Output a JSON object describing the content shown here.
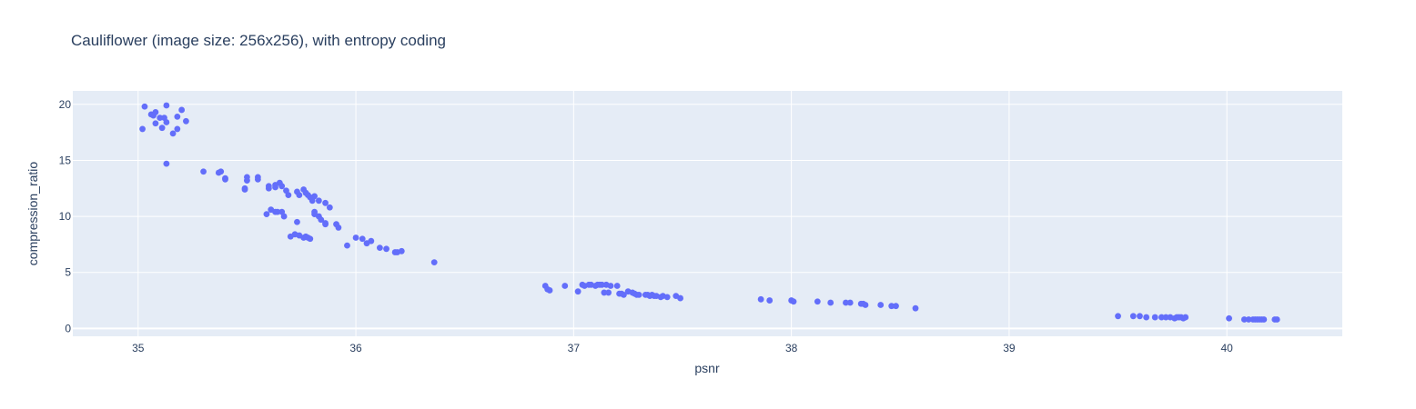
{
  "chart_data": {
    "type": "scatter",
    "title": "Cauliflower (image size: 256x256), with entropy coding",
    "xlabel": "psnr",
    "ylabel": "compression_ratio",
    "xlim": [
      34.7,
      40.53
    ],
    "ylim": [
      -0.7,
      21.2
    ],
    "xticks": [
      "35",
      "36",
      "37",
      "38",
      "39",
      "40"
    ],
    "yticks": [
      "0",
      "5",
      "10",
      "15",
      "20"
    ],
    "grid": true,
    "legend": "none",
    "colors": {
      "marker": "#636efa",
      "plot_bg": "#e5ecf6",
      "text": "#2a3f5f",
      "grid": "#ffffff"
    },
    "series": [
      {
        "points": [
          [
            35.02,
            17.8
          ],
          [
            35.03,
            19.8
          ],
          [
            35.06,
            19.1
          ],
          [
            35.07,
            19.0
          ],
          [
            35.08,
            19.3
          ],
          [
            35.08,
            18.3
          ],
          [
            35.1,
            18.8
          ],
          [
            35.11,
            17.9
          ],
          [
            35.12,
            18.8
          ],
          [
            35.13,
            19.9
          ],
          [
            35.13,
            18.4
          ],
          [
            35.13,
            14.7
          ],
          [
            35.16,
            17.4
          ],
          [
            35.18,
            18.9
          ],
          [
            35.18,
            17.8
          ],
          [
            35.2,
            19.5
          ],
          [
            35.22,
            18.5
          ],
          [
            35.3,
            14.0
          ],
          [
            35.37,
            13.9
          ],
          [
            35.38,
            14.0
          ],
          [
            35.4,
            13.3
          ],
          [
            35.4,
            13.4
          ],
          [
            35.49,
            12.5
          ],
          [
            35.49,
            12.4
          ],
          [
            35.5,
            13.2
          ],
          [
            35.5,
            13.5
          ],
          [
            35.55,
            13.3
          ],
          [
            35.55,
            13.5
          ],
          [
            35.6,
            12.5
          ],
          [
            35.6,
            12.7
          ],
          [
            35.63,
            12.8
          ],
          [
            35.63,
            12.6
          ],
          [
            35.65,
            13.0
          ],
          [
            35.66,
            12.7
          ],
          [
            35.68,
            12.3
          ],
          [
            35.69,
            11.9
          ],
          [
            35.59,
            10.2
          ],
          [
            35.61,
            10.6
          ],
          [
            35.63,
            10.4
          ],
          [
            35.64,
            10.4
          ],
          [
            35.66,
            10.4
          ],
          [
            35.67,
            10.0
          ],
          [
            35.7,
            8.2
          ],
          [
            35.72,
            8.4
          ],
          [
            35.73,
            9.5
          ],
          [
            35.74,
            8.3
          ],
          [
            35.76,
            8.1
          ],
          [
            35.77,
            8.2
          ],
          [
            35.78,
            8.1
          ],
          [
            35.79,
            8.0
          ],
          [
            35.73,
            12.2
          ],
          [
            35.74,
            11.9
          ],
          [
            35.76,
            12.4
          ],
          [
            35.77,
            12.1
          ],
          [
            35.78,
            11.9
          ],
          [
            35.79,
            11.7
          ],
          [
            35.8,
            11.4
          ],
          [
            35.81,
            11.8
          ],
          [
            35.83,
            11.4
          ],
          [
            35.86,
            11.2
          ],
          [
            35.88,
            10.8
          ],
          [
            35.81,
            10.4
          ],
          [
            35.81,
            10.2
          ],
          [
            35.83,
            10.0
          ],
          [
            35.84,
            9.7
          ],
          [
            35.86,
            9.4
          ],
          [
            35.86,
            9.3
          ],
          [
            35.91,
            9.3
          ],
          [
            35.92,
            9.0
          ],
          [
            35.96,
            7.4
          ],
          [
            36.0,
            8.1
          ],
          [
            36.03,
            8.0
          ],
          [
            36.05,
            7.6
          ],
          [
            36.07,
            7.8
          ],
          [
            36.11,
            7.2
          ],
          [
            36.14,
            7.1
          ],
          [
            36.18,
            6.8
          ],
          [
            36.19,
            6.8
          ],
          [
            36.21,
            6.9
          ],
          [
            36.36,
            5.9
          ],
          [
            36.87,
            3.8
          ],
          [
            36.88,
            3.5
          ],
          [
            36.89,
            3.4
          ],
          [
            36.96,
            3.8
          ],
          [
            37.02,
            3.3
          ],
          [
            37.04,
            3.9
          ],
          [
            37.05,
            3.8
          ],
          [
            37.07,
            3.9
          ],
          [
            37.08,
            3.9
          ],
          [
            37.1,
            3.8
          ],
          [
            37.11,
            3.9
          ],
          [
            37.12,
            3.9
          ],
          [
            37.13,
            3.9
          ],
          [
            37.14,
            3.2
          ],
          [
            37.15,
            3.9
          ],
          [
            37.16,
            3.2
          ],
          [
            37.17,
            3.8
          ],
          [
            37.2,
            3.8
          ],
          [
            37.21,
            3.1
          ],
          [
            37.22,
            3.1
          ],
          [
            37.23,
            3.0
          ],
          [
            37.25,
            3.3
          ],
          [
            37.27,
            3.2
          ],
          [
            37.28,
            3.1
          ],
          [
            37.29,
            3.0
          ],
          [
            37.3,
            3.0
          ],
          [
            37.33,
            3.0
          ],
          [
            37.34,
            3.0
          ],
          [
            37.35,
            2.9
          ],
          [
            37.36,
            3.0
          ],
          [
            37.37,
            2.9
          ],
          [
            37.38,
            2.9
          ],
          [
            37.4,
            2.8
          ],
          [
            37.41,
            2.9
          ],
          [
            37.43,
            2.8
          ],
          [
            37.47,
            2.9
          ],
          [
            37.49,
            2.7
          ],
          [
            37.86,
            2.6
          ],
          [
            37.9,
            2.5
          ],
          [
            38.0,
            2.5
          ],
          [
            38.01,
            2.4
          ],
          [
            38.12,
            2.4
          ],
          [
            38.18,
            2.3
          ],
          [
            38.25,
            2.3
          ],
          [
            38.27,
            2.3
          ],
          [
            38.32,
            2.2
          ],
          [
            38.33,
            2.2
          ],
          [
            38.34,
            2.1
          ],
          [
            38.41,
            2.1
          ],
          [
            38.46,
            2.0
          ],
          [
            38.48,
            2.0
          ],
          [
            38.57,
            1.8
          ],
          [
            39.5,
            1.1
          ],
          [
            39.57,
            1.1
          ],
          [
            39.6,
            1.1
          ],
          [
            39.63,
            1.0
          ],
          [
            39.67,
            1.0
          ],
          [
            39.7,
            1.0
          ],
          [
            39.72,
            1.0
          ],
          [
            39.74,
            1.0
          ],
          [
            39.76,
            0.9
          ],
          [
            39.77,
            1.0
          ],
          [
            39.78,
            1.0
          ],
          [
            39.79,
            1.0
          ],
          [
            39.8,
            0.9
          ],
          [
            39.81,
            1.0
          ],
          [
            40.01,
            0.9
          ],
          [
            40.08,
            0.8
          ],
          [
            40.1,
            0.8
          ],
          [
            40.12,
            0.8
          ],
          [
            40.13,
            0.8
          ],
          [
            40.14,
            0.8
          ],
          [
            40.15,
            0.8
          ],
          [
            40.16,
            0.8
          ],
          [
            40.17,
            0.8
          ],
          [
            40.22,
            0.8
          ],
          [
            40.23,
            0.8
          ]
        ]
      }
    ]
  }
}
